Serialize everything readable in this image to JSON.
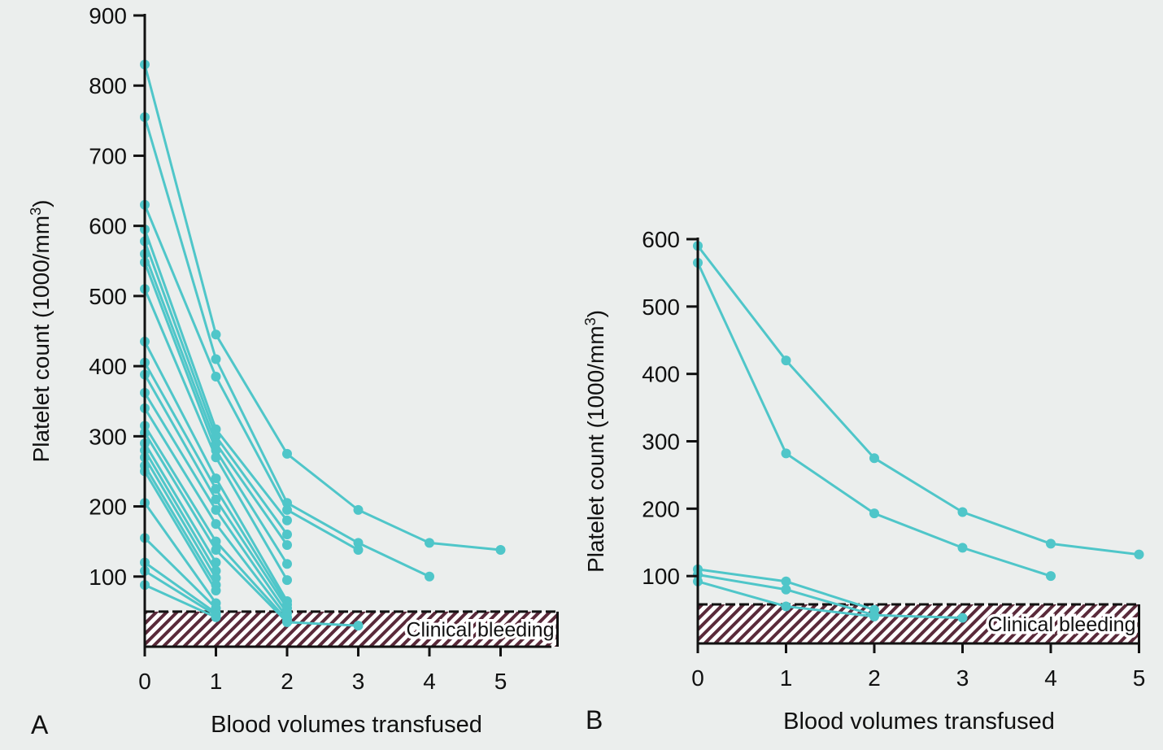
{
  "colors": {
    "series": "#4fc6c9",
    "axis": "#111111",
    "hatch": "#5a2a3a",
    "background": "#ebeeed"
  },
  "chart_data": [
    {
      "type": "line",
      "panel_label": "A",
      "xlabel": "Blood volumes transfused",
      "ylabel": "Platelet count (1000/mm³)",
      "ylabel_text": "Platelet count (1000/mm",
      "ylabel_sup": "3",
      "ylabel_close": ")",
      "xlim": [
        0,
        5.8
      ],
      "ylim": [
        0,
        900
      ],
      "xticks": [
        "0",
        "1",
        "2",
        "3",
        "4",
        "5"
      ],
      "yticks": [
        "100",
        "200",
        "300",
        "400",
        "500",
        "600",
        "700",
        "800",
        "900"
      ],
      "annotation": "Clinical bleeding",
      "bleeding_band": [
        0,
        50
      ],
      "bleeding_band_xmax": 5.8,
      "series": [
        {
          "points": [
            [
              0,
              830
            ],
            [
              1,
              445
            ],
            [
              2,
              275
            ],
            [
              3,
              195
            ],
            [
              4,
              148
            ],
            [
              5,
              138
            ]
          ]
        },
        {
          "points": [
            [
              0,
              755
            ],
            [
              1,
              410
            ],
            [
              2,
              205
            ],
            [
              3,
              148
            ],
            [
              4,
              100
            ]
          ]
        },
        {
          "points": [
            [
              0,
              630
            ],
            [
              1,
              385
            ],
            [
              2,
              195
            ],
            [
              3,
              138
            ]
          ]
        },
        {
          "points": [
            [
              0,
              595
            ],
            [
              1,
              310
            ],
            [
              2,
              180
            ]
          ]
        },
        {
          "points": [
            [
              0,
              578
            ],
            [
              1,
              300
            ],
            [
              2,
              160
            ]
          ]
        },
        {
          "points": [
            [
              0,
              560
            ],
            [
              1,
              290
            ],
            [
              2,
              145
            ]
          ]
        },
        {
          "points": [
            [
              0,
              548
            ],
            [
              1,
              280
            ],
            [
              2,
              118
            ]
          ]
        },
        {
          "points": [
            [
              0,
              510
            ],
            [
              1,
              270
            ],
            [
              2,
              95
            ]
          ]
        },
        {
          "points": [
            [
              0,
              435
            ],
            [
              1,
              240
            ],
            [
              2,
              65
            ]
          ]
        },
        {
          "points": [
            [
              0,
              405
            ],
            [
              1,
              225
            ],
            [
              2,
              60
            ]
          ]
        },
        {
          "points": [
            [
              0,
              388
            ],
            [
              1,
              210
            ],
            [
              2,
              55
            ]
          ]
        },
        {
          "points": [
            [
              0,
              362
            ],
            [
              1,
              195
            ],
            [
              2,
              48
            ]
          ]
        },
        {
          "points": [
            [
              0,
              340
            ],
            [
              1,
              175
            ],
            [
              2,
              42
            ]
          ]
        },
        {
          "points": [
            [
              0,
              315
            ],
            [
              1,
              150
            ],
            [
              2,
              38
            ]
          ]
        },
        {
          "points": [
            [
              0,
              305
            ],
            [
              1,
              138
            ],
            [
              2,
              35
            ],
            [
              3,
              30
            ]
          ]
        },
        {
          "points": [
            [
              0,
              290
            ],
            [
              1,
              120
            ]
          ]
        },
        {
          "points": [
            [
              0,
              280
            ],
            [
              1,
              108
            ]
          ]
        },
        {
          "points": [
            [
              0,
              270
            ],
            [
              1,
              98
            ]
          ]
        },
        {
          "points": [
            [
              0,
              258
            ],
            [
              1,
              88
            ]
          ]
        },
        {
          "points": [
            [
              0,
              250
            ],
            [
              1,
              80
            ]
          ]
        },
        {
          "points": [
            [
              0,
              205
            ],
            [
              1,
              62
            ]
          ]
        },
        {
          "points": [
            [
              0,
              155
            ],
            [
              1,
              55
            ]
          ]
        },
        {
          "points": [
            [
              0,
              120
            ],
            [
              1,
              48
            ]
          ]
        },
        {
          "points": [
            [
              0,
              108
            ],
            [
              1,
              45
            ]
          ]
        },
        {
          "points": [
            [
              0,
              88
            ],
            [
              1,
              42
            ]
          ]
        }
      ]
    },
    {
      "type": "line",
      "panel_label": "B",
      "xlabel": "Blood volumes transfused",
      "ylabel": "Platelet count (1000/mm³)",
      "ylabel_text": "Platelet count (1000/mm",
      "ylabel_sup": "3",
      "ylabel_close": ")",
      "xlim": [
        0,
        5
      ],
      "ylim": [
        0,
        600
      ],
      "xticks": [
        "0",
        "1",
        "2",
        "3",
        "4",
        "5"
      ],
      "yticks": [
        "100",
        "200",
        "300",
        "400",
        "500",
        "600"
      ],
      "annotation": "Clinical bleeding",
      "bleeding_band": [
        0,
        58
      ],
      "bleeding_band_xmax": 5,
      "series": [
        {
          "points": [
            [
              0,
              590
            ],
            [
              1,
              420
            ],
            [
              2,
              275
            ],
            [
              3,
              195
            ],
            [
              4,
              148
            ],
            [
              5,
              132
            ]
          ]
        },
        {
          "points": [
            [
              0,
              565
            ],
            [
              1,
              282
            ],
            [
              2,
              193
            ],
            [
              3,
              142
            ],
            [
              4,
              100
            ]
          ]
        },
        {
          "points": [
            [
              0,
              110
            ],
            [
              1,
              92
            ],
            [
              2,
              50
            ]
          ]
        },
        {
          "points": [
            [
              0,
              102
            ],
            [
              1,
              80
            ],
            [
              2,
              42
            ],
            [
              3,
              38
            ]
          ]
        },
        {
          "points": [
            [
              0,
              92
            ],
            [
              1,
              55
            ],
            [
              2,
              40
            ]
          ]
        }
      ]
    }
  ]
}
